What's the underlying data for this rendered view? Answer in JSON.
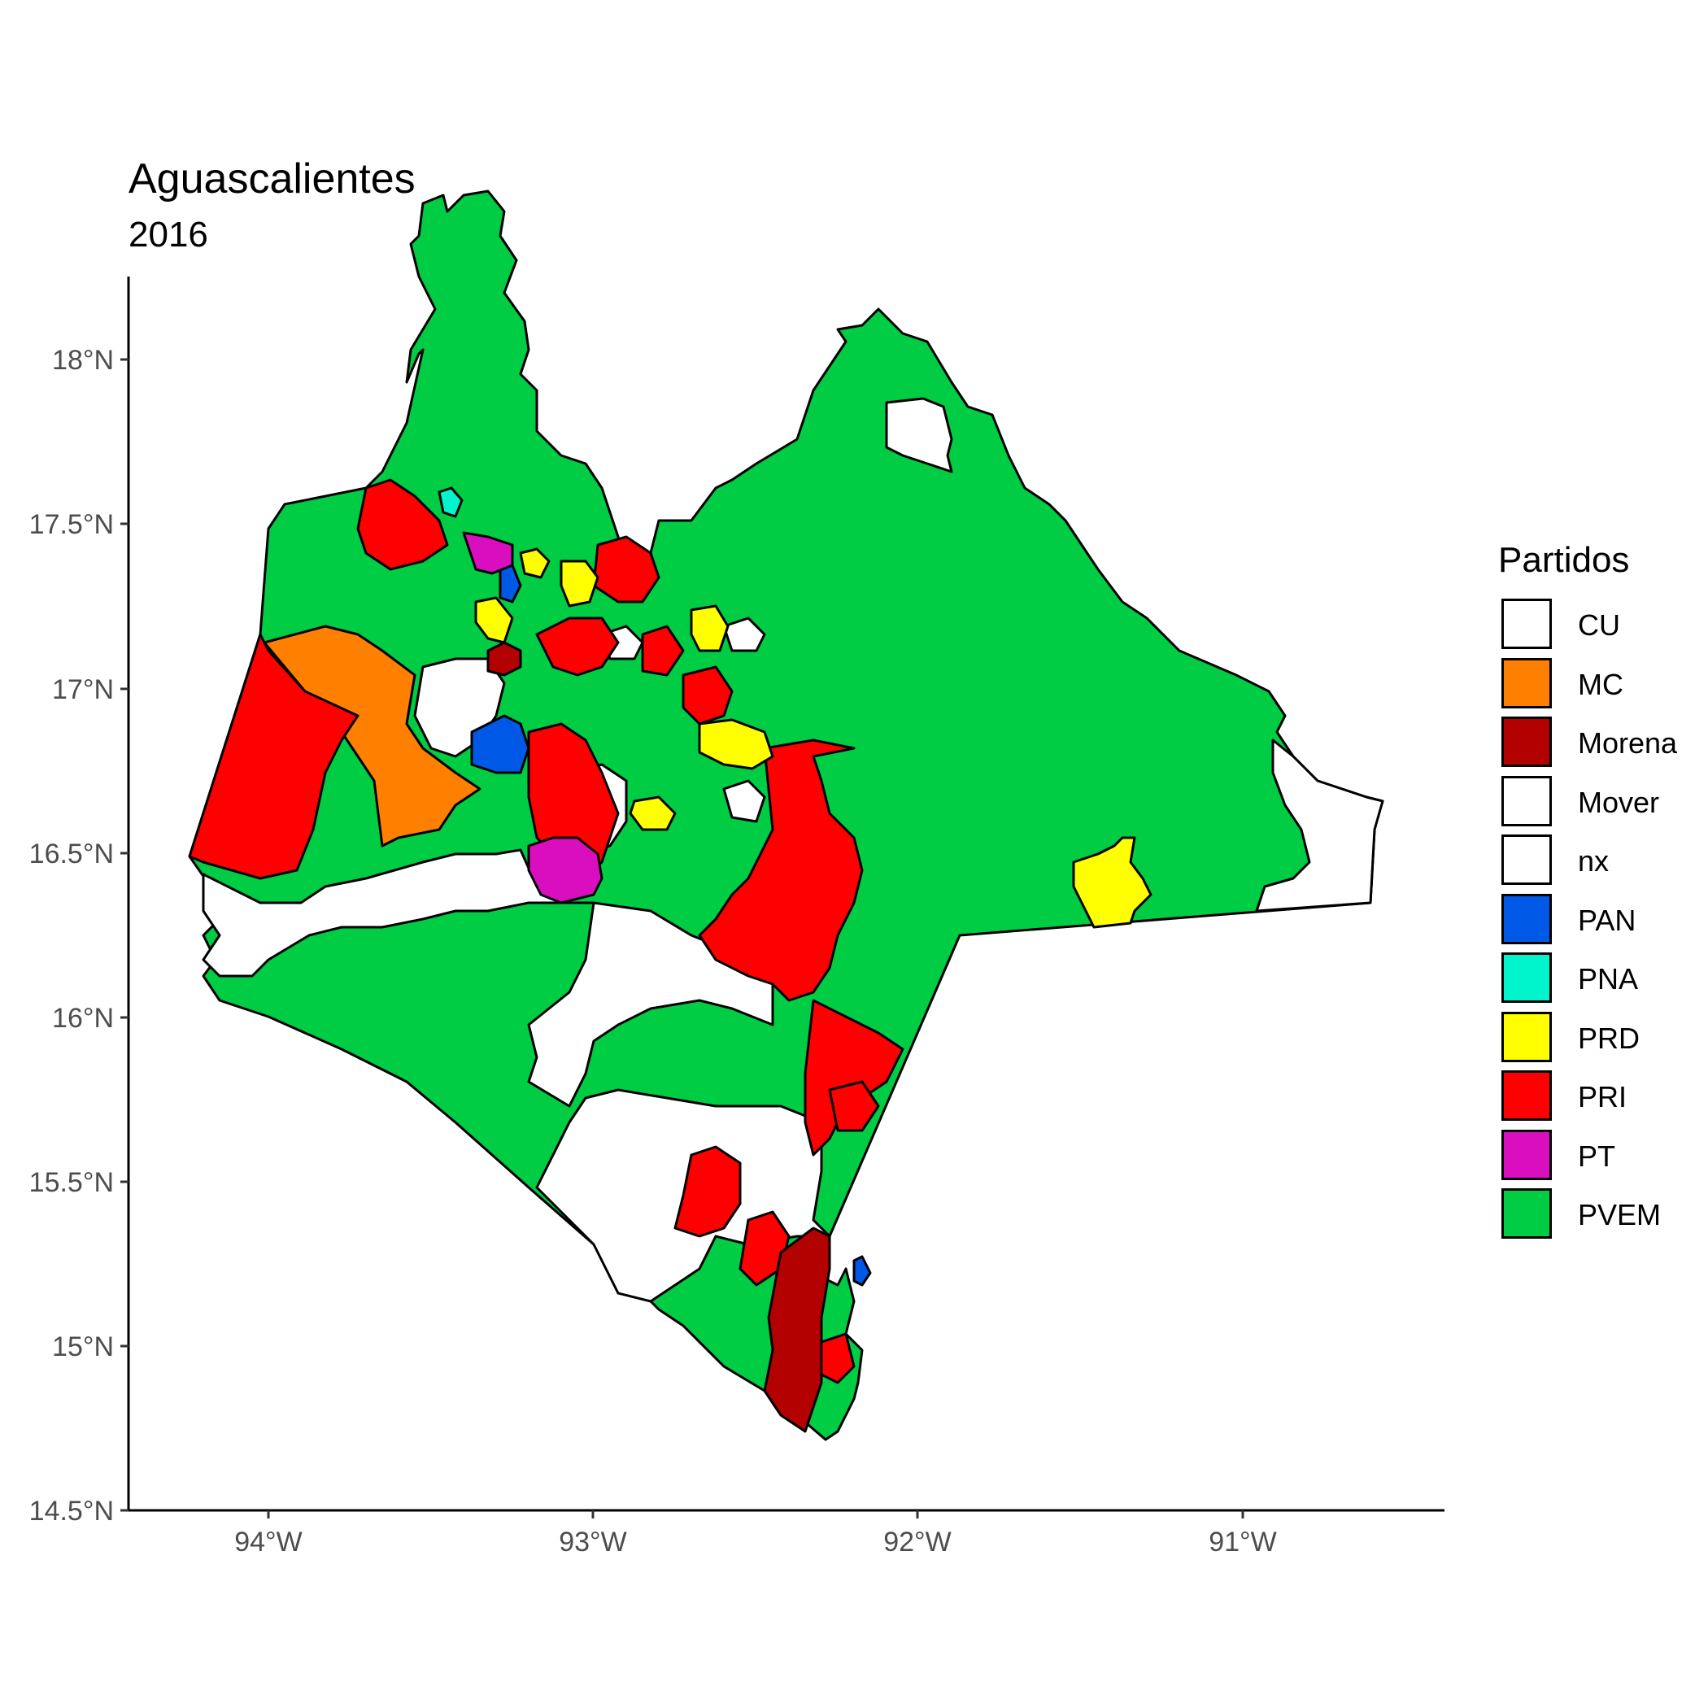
{
  "title": "Aguascalientes",
  "subtitle": "2016",
  "legend": {
    "title": "Partidos",
    "items": [
      {
        "label": "CU",
        "color": "#ffffff"
      },
      {
        "label": "MC",
        "color": "#ff8000"
      },
      {
        "label": "Morena",
        "color": "#b30000"
      },
      {
        "label": "Mover",
        "color": "#ffffff"
      },
      {
        "label": "nx",
        "color": "#ffffff"
      },
      {
        "label": "PAN",
        "color": "#0059e6"
      },
      {
        "label": "PNA",
        "color": "#00f5cc"
      },
      {
        "label": "PRD",
        "color": "#ffff00"
      },
      {
        "label": "PRI",
        "color": "#ff0000"
      },
      {
        "label": "PT",
        "color": "#d90fbf"
      },
      {
        "label": "PVEM",
        "color": "#00cc44"
      }
    ]
  },
  "axes": {
    "x_ticks": [
      "94°W",
      "93°W",
      "92°W",
      "91°W"
    ],
    "y_ticks": [
      "14.5°N",
      "15°N",
      "15.5°N",
      "16°N",
      "16.5°N",
      "17°N",
      "17.5°N",
      "18°N"
    ]
  }
}
